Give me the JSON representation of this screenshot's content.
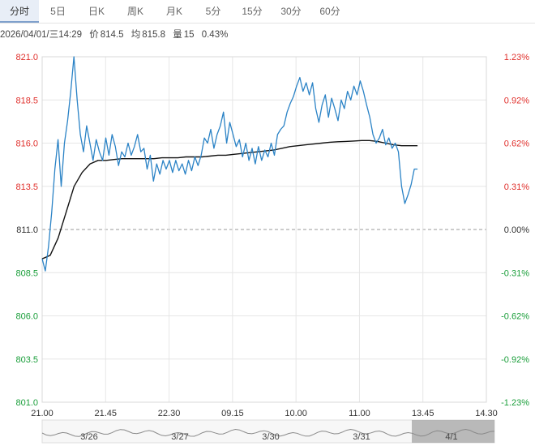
{
  "tabs": [
    {
      "label": "分时",
      "active": true
    },
    {
      "label": "5日",
      "active": false
    },
    {
      "label": "日K",
      "active": false
    },
    {
      "label": "周K",
      "active": false
    },
    {
      "label": "月K",
      "active": false
    },
    {
      "label": "5分",
      "active": false
    },
    {
      "label": "15分",
      "active": false
    },
    {
      "label": "30分",
      "active": false
    },
    {
      "label": "60分",
      "active": false
    }
  ],
  "info": {
    "datetime": "2026/04/01/三14:29",
    "price_label": "价",
    "price": "814.5",
    "avg_label": "均",
    "avg": "815.8",
    "qty_label": "量",
    "qty": "15",
    "pct": "0.43%"
  },
  "navigator": {
    "dates": [
      "3/26",
      "3/27",
      "3/30",
      "3/31",
      "4/1"
    ]
  },
  "colors": {
    "price_line": "#2b83c6",
    "avg_line": "#111111",
    "up_text": "#e0302c",
    "down_text": "#1a9e3a",
    "grid": "#e6e6e6",
    "base_dash": "#999999"
  },
  "chart_data": {
    "type": "line",
    "prev_close": 811.0,
    "ylim": [
      801.0,
      821.0
    ],
    "y_ticks": [
      "821.0",
      "818.5",
      "816.0",
      "813.5",
      "811.0",
      "808.5",
      "806.0",
      "803.5",
      "801.0"
    ],
    "pct_ticks": [
      "1.23%",
      "0.92%",
      "0.62%",
      "0.31%",
      "0.00%",
      "-0.31%",
      "-0.62%",
      "-0.92%",
      "-1.23%"
    ],
    "x_ticks": [
      "21.00",
      "21.45",
      "22.30",
      "09.15",
      "10.00",
      "11.00",
      "13.45",
      "14.30"
    ],
    "series": [
      {
        "values": [
          809.3,
          808.6,
          810.0,
          812.0,
          814.5,
          816.2,
          813.5,
          816.0,
          817.3,
          819.0,
          821.0,
          818.5,
          816.5,
          815.5,
          817.0,
          816.0,
          815.0,
          816.2,
          815.5,
          815.0,
          816.3,
          815.3,
          816.5,
          815.8,
          814.7,
          815.5,
          815.2,
          816.0,
          815.3,
          815.8,
          816.5,
          815.5,
          815.7,
          814.5,
          815.3,
          813.8,
          814.8,
          814.2,
          815.0,
          814.5,
          815.0,
          814.3,
          815.0,
          814.4,
          814.8,
          814.2,
          815.0,
          814.4,
          815.2,
          814.7,
          815.3,
          816.3,
          816.0,
          816.8,
          815.7,
          816.5,
          817.0,
          817.8,
          816.0,
          817.2,
          816.5,
          815.8,
          816.2,
          815.2,
          816.0,
          815.0,
          815.7,
          814.8,
          815.8,
          815.0,
          815.6,
          815.2,
          816.0,
          815.3,
          816.5,
          816.8,
          817.0,
          817.8,
          818.3,
          818.7,
          819.3,
          819.8,
          819.0,
          819.5,
          818.8,
          819.5,
          818.0,
          817.2,
          818.2,
          818.8,
          817.5,
          818.6,
          818.0,
          817.3,
          818.5,
          818.0,
          819.0,
          818.5,
          819.3,
          818.8,
          819.6,
          819.0,
          818.2,
          817.5,
          816.5,
          816.0,
          816.3,
          816.8,
          815.9,
          816.3,
          815.7,
          816.0,
          815.5,
          813.5,
          812.5,
          813.0,
          813.6,
          814.5,
          814.5
        ],
        "x_index_end_ratio": 0.845
      },
      {
        "values": [
          809.3,
          809.5,
          810.5,
          812.0,
          813.5,
          814.3,
          814.8,
          815.0,
          815.0,
          815.05,
          815.1,
          815.1,
          815.1,
          815.1,
          815.1,
          815.15,
          815.15,
          815.15,
          815.2,
          815.2,
          815.2,
          815.25,
          815.3,
          815.3,
          815.35,
          815.4,
          815.45,
          815.5,
          815.55,
          815.6,
          815.7,
          815.8,
          815.85,
          815.9,
          815.95,
          816.0,
          816.05,
          816.08,
          816.1,
          816.12,
          816.15,
          816.15,
          816.1,
          816.0,
          815.9,
          815.85,
          815.85,
          815.85
        ],
        "x_index_end_ratio": 0.845
      }
    ]
  }
}
